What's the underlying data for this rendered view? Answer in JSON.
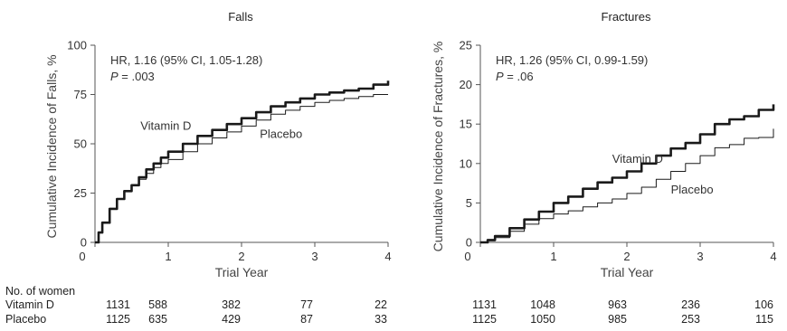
{
  "chart_data": [
    {
      "type": "line",
      "title": "Falls",
      "xlabel": "Trial Year",
      "ylabel": "Cumulative Incidence of Falls, %",
      "xlim": [
        0,
        4
      ],
      "ylim": [
        0,
        100
      ],
      "xticks": [
        "0",
        "1",
        "2",
        "3",
        "4"
      ],
      "yticks": [
        "0",
        "25",
        "50",
        "75",
        "100"
      ],
      "annotation": {
        "hr": "HR, 1.16 (95% CI, 1.05-1.28)",
        "p_label": "P",
        "p_value": " = .003"
      },
      "series": [
        {
          "name": "Vitamin D",
          "x": [
            0,
            0.05,
            0.1,
            0.2,
            0.3,
            0.4,
            0.5,
            0.6,
            0.7,
            0.8,
            0.9,
            1.0,
            1.2,
            1.4,
            1.6,
            1.8,
            2.0,
            2.2,
            2.4,
            2.6,
            2.8,
            3.0,
            3.2,
            3.4,
            3.6,
            3.8,
            4.0
          ],
          "values": [
            0,
            5,
            10,
            17,
            22,
            26,
            29,
            33,
            37,
            40,
            43,
            46,
            50,
            54,
            57,
            60,
            63,
            66,
            69,
            71,
            73,
            75,
            76,
            77,
            78,
            80,
            82
          ]
        },
        {
          "name": "Placebo",
          "x": [
            0,
            0.05,
            0.1,
            0.2,
            0.3,
            0.4,
            0.5,
            0.6,
            0.7,
            0.8,
            0.9,
            1.0,
            1.2,
            1.4,
            1.6,
            1.8,
            2.0,
            2.2,
            2.4,
            2.6,
            2.8,
            3.0,
            3.2,
            3.4,
            3.6,
            3.8,
            4.0
          ],
          "values": [
            0,
            5,
            10,
            17,
            22,
            26,
            29,
            32,
            35,
            38,
            40,
            42,
            46,
            50,
            53,
            56,
            59,
            62,
            65,
            67,
            69,
            71,
            72,
            73,
            74,
            75,
            75
          ]
        }
      ],
      "series_labels": [
        {
          "text": "Vitamin D",
          "x": 0.62,
          "y": 57
        },
        {
          "text": "Placebo",
          "x": 2.25,
          "y": 53
        }
      ],
      "at_risk": {
        "title": "No. of women",
        "rows": [
          {
            "name": "Vitamin D",
            "values": [
              "1131",
              "588",
              "382",
              "77",
              "22"
            ]
          },
          {
            "name": "Placebo",
            "values": [
              "1125",
              "635",
              "429",
              "87",
              "33"
            ]
          }
        ]
      }
    },
    {
      "type": "line",
      "title": "Fractures",
      "xlabel": "Trial Year",
      "ylabel": "Cumulative Incidence of Fractures, %",
      "xlim": [
        0,
        4
      ],
      "ylim": [
        0,
        25
      ],
      "xticks": [
        "0",
        "1",
        "2",
        "3",
        "4"
      ],
      "yticks": [
        "0",
        "5",
        "10",
        "15",
        "20",
        "25"
      ],
      "annotation": {
        "hr": "HR, 1.26 (95% CI, 0.99-1.59)",
        "p_label": "P",
        "p_value": " = .06"
      },
      "series": [
        {
          "name": "Vitamin D",
          "x": [
            0,
            0.1,
            0.2,
            0.4,
            0.6,
            0.8,
            1.0,
            1.2,
            1.4,
            1.6,
            1.8,
            2.0,
            2.2,
            2.4,
            2.6,
            2.8,
            3.0,
            3.2,
            3.4,
            3.6,
            3.8,
            4.0
          ],
          "values": [
            0,
            0.3,
            0.8,
            1.8,
            2.9,
            3.9,
            5.0,
            5.8,
            6.8,
            7.6,
            8.2,
            9.0,
            10.0,
            11.0,
            11.9,
            12.6,
            13.7,
            15.0,
            15.6,
            16.0,
            16.8,
            17.5
          ]
        },
        {
          "name": "Placebo",
          "x": [
            0,
            0.1,
            0.2,
            0.4,
            0.6,
            0.8,
            1.0,
            1.2,
            1.4,
            1.6,
            1.8,
            2.0,
            2.2,
            2.4,
            2.6,
            2.8,
            3.0,
            3.2,
            3.4,
            3.6,
            3.8,
            4.0
          ],
          "values": [
            0,
            0.2,
            0.6,
            1.4,
            2.3,
            3.0,
            3.6,
            4.0,
            4.5,
            5.0,
            5.5,
            6.2,
            7.0,
            8.0,
            9.0,
            10.0,
            11.0,
            12.0,
            12.4,
            13.2,
            13.3,
            14.4
          ]
        }
      ],
      "series_labels": [
        {
          "text": "Vitamin D",
          "x": 1.8,
          "y": 10.1
        },
        {
          "text": "Placebo",
          "x": 2.6,
          "y": 6.2
        }
      ],
      "at_risk": {
        "title": "",
        "rows": [
          {
            "name": "Vitamin D",
            "values": [
              "1131",
              "1048",
              "963",
              "236",
              "106"
            ]
          },
          {
            "name": "Placebo",
            "values": [
              "1125",
              "1050",
              "985",
              "253",
              "115"
            ]
          }
        ]
      }
    }
  ]
}
